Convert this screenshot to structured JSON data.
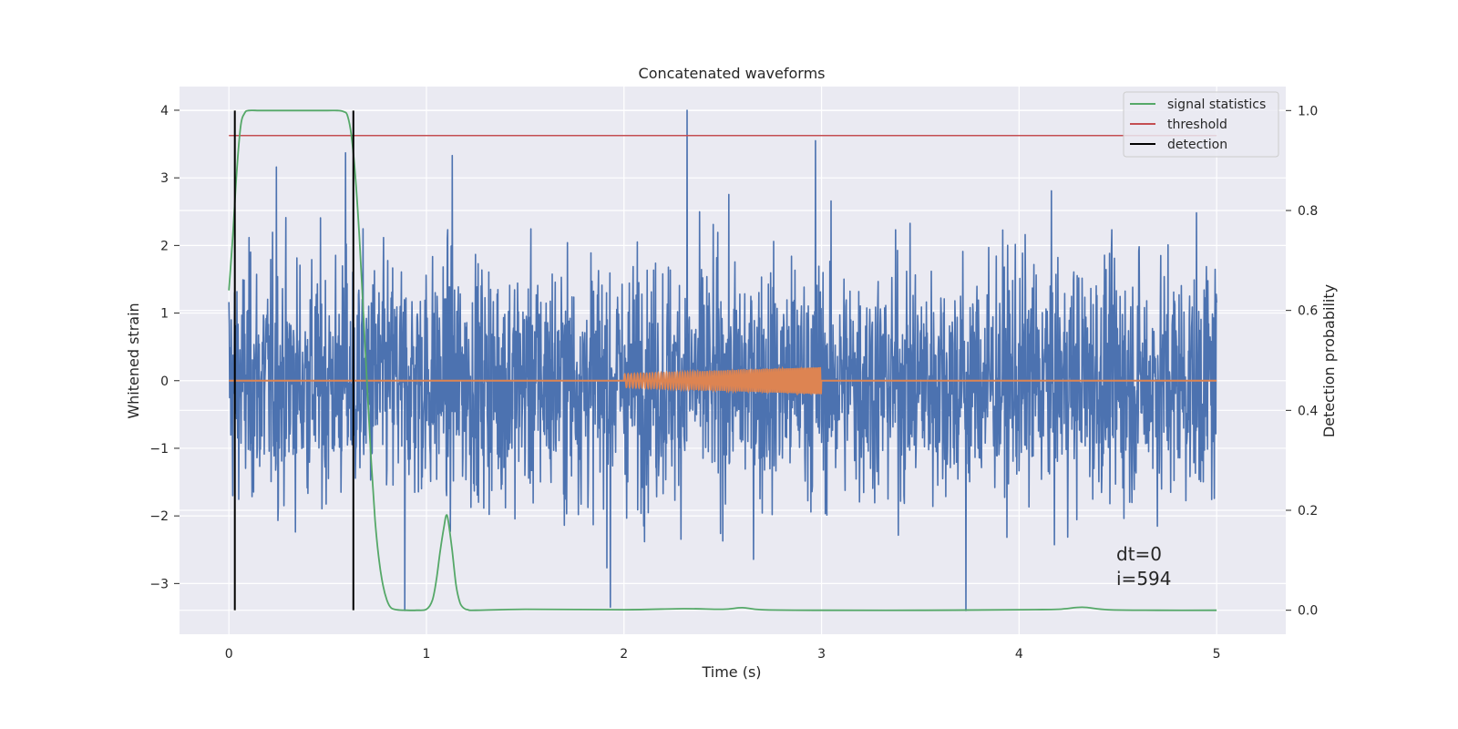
{
  "chart_data": {
    "type": "line",
    "title": "Concatenated waveforms",
    "xlabel": "Time (s)",
    "ylabel": "Whitened strain",
    "ylabel_right": "Detection probability",
    "xlim": [
      -0.25,
      5.35
    ],
    "ylim": [
      -3.75,
      4.35
    ],
    "ylim_right": [
      -0.048,
      1.048
    ],
    "x_ticks": [
      0,
      1,
      2,
      3,
      4,
      5
    ],
    "y_ticks": [
      -3,
      -2,
      -1,
      0,
      1,
      2,
      3,
      4
    ],
    "y_ticks_right": [
      0.0,
      0.2,
      0.4,
      0.6,
      0.8,
      1.0
    ],
    "x_tick_labels": [
      "0",
      "1",
      "2",
      "3",
      "4",
      "5"
    ],
    "y_tick_labels": [
      "−3",
      "−2",
      "−1",
      "0",
      "1",
      "2",
      "3",
      "4"
    ],
    "y_tick_labels_right": [
      "0.0",
      "0.2",
      "0.4",
      "0.6",
      "0.8",
      "1.0"
    ],
    "grid": true,
    "legend_position": "top-right",
    "colors": {
      "background": "#eaeaf2",
      "noise": "#4c72b0",
      "template": "#dd8452",
      "signal_statistics": "#55a868",
      "threshold": "#c44e52",
      "detection": "#000000"
    },
    "series": [
      {
        "key": "noise",
        "axis": "left",
        "description_type": "noise",
        "x_range": [
          0,
          5
        ],
        "amplitude_range": [
          -3.35,
          4.0
        ],
        "peaks": [
          [
            2.32,
            4.0
          ],
          [
            2.97,
            3.55
          ],
          [
            0.59,
            3.37
          ],
          [
            1.13,
            3.33
          ],
          [
            0.24,
            3.16
          ],
          [
            3.73,
            -3.4
          ],
          [
            1.93,
            -3.35
          ],
          [
            0.89,
            -3.4
          ]
        ]
      },
      {
        "key": "template",
        "axis": "left",
        "description_type": "chirp",
        "x_range": [
          2.0,
          3.0
        ],
        "envelope": [
          [
            2.0,
            0.1
          ],
          [
            3.0,
            0.2
          ]
        ]
      },
      {
        "key": "signal_statistics",
        "name": "signal statistics",
        "axis": "right",
        "x": [
          0.0,
          0.02,
          0.04,
          0.06,
          0.08,
          0.1,
          0.15,
          0.2,
          0.3,
          0.4,
          0.5,
          0.55,
          0.58,
          0.6,
          0.62,
          0.64,
          0.66,
          0.68,
          0.7,
          0.72,
          0.74,
          0.76,
          0.78,
          0.8,
          0.82,
          0.85,
          0.9,
          0.95,
          1.0,
          1.03,
          1.05,
          1.07,
          1.09,
          1.1,
          1.11,
          1.13,
          1.15,
          1.17,
          1.19,
          1.21,
          1.25,
          1.5,
          2.0,
          2.3,
          2.5,
          2.6,
          2.7,
          3.0,
          3.5,
          4.0,
          4.2,
          4.32,
          4.45,
          4.7,
          5.0
        ],
        "values": [
          0.64,
          0.75,
          0.88,
          0.97,
          0.995,
          1.0,
          1.0,
          1.0,
          1.0,
          1.0,
          1.0,
          1.0,
          0.998,
          0.99,
          0.95,
          0.87,
          0.75,
          0.6,
          0.45,
          0.3,
          0.18,
          0.1,
          0.05,
          0.02,
          0.005,
          0.001,
          0.0,
          0.0,
          0.002,
          0.02,
          0.06,
          0.12,
          0.17,
          0.19,
          0.18,
          0.12,
          0.05,
          0.015,
          0.004,
          0.001,
          0.0,
          0.002,
          0.001,
          0.003,
          0.002,
          0.005,
          0.001,
          0.0,
          0.0,
          0.001,
          0.002,
          0.006,
          0.001,
          0.0,
          0.0
        ]
      },
      {
        "key": "threshold",
        "name": "threshold",
        "axis": "right",
        "x": [
          0,
          5
        ],
        "values": [
          0.95,
          0.95
        ]
      },
      {
        "key": "detection",
        "name": "detection",
        "axis": "right",
        "vlines": [
          0.03,
          0.63
        ],
        "y_range": [
          0.0,
          1.0
        ]
      }
    ],
    "legend": [
      "signal statistics",
      "threshold",
      "detection"
    ],
    "annotation": [
      "dt=0",
      "i=594"
    ]
  }
}
